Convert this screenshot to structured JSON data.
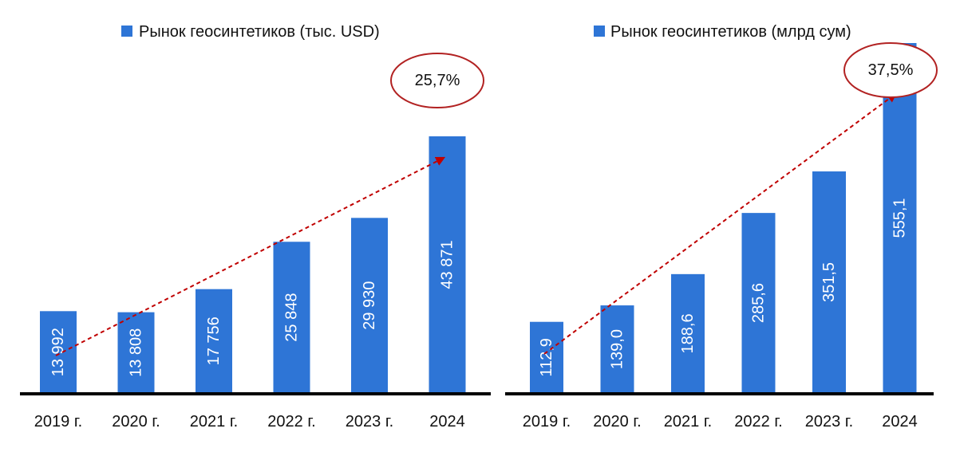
{
  "chart_data": [
    {
      "type": "bar",
      "legend": "Рынок геосинтетиков (тыс. USD)",
      "legend_placement": "top",
      "categories": [
        "2019 г.",
        "2020 г.",
        "2021 г.",
        "2022 г.",
        "2023 г.",
        "2024"
      ],
      "values": [
        13992,
        13808,
        17756,
        25848,
        29930,
        43871
      ],
      "value_labels": [
        "13 992",
        "13 808",
        "17 756",
        "25 848",
        "29 930",
        "43 871"
      ],
      "ylim": [
        0,
        43871
      ],
      "growth_label": "25,7%",
      "trend_from_index": 0,
      "trend_to_index": 5,
      "bar_color": "#2E75D6",
      "trend_color": "#C00000"
    },
    {
      "type": "bar",
      "legend": "Рынок геосинтетиков (млрд сум)",
      "legend_placement": "top",
      "categories": [
        "2019 г.",
        "2020 г.",
        "2021 г.",
        "2022 г.",
        "2023 г.",
        "2024"
      ],
      "values": [
        112.9,
        139.0,
        188.6,
        285.6,
        351.5,
        555.1
      ],
      "value_labels": [
        "112,9",
        "139,0",
        "188,6",
        "285,6",
        "351,5",
        "555,1"
      ],
      "ylim": [
        0,
        555.1
      ],
      "growth_label": "37,5%",
      "trend_from_index": 0,
      "trend_to_index": 5,
      "bar_color": "#2E75D6",
      "trend_color": "#C00000"
    }
  ]
}
